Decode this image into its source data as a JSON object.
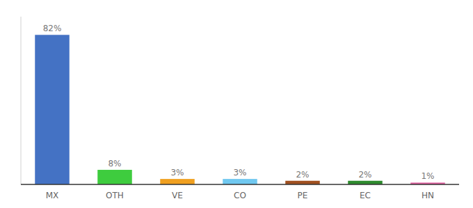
{
  "chart_data": {
    "type": "bar",
    "categories": [
      "MX",
      "OTH",
      "VE",
      "CO",
      "PE",
      "EC",
      "HN"
    ],
    "values": [
      82,
      8,
      3,
      3,
      2,
      2,
      1
    ],
    "value_labels": [
      "82%",
      "8%",
      "3%",
      "3%",
      "2%",
      "2%",
      "1%"
    ],
    "colors": [
      "#4472c4",
      "#3ecc3e",
      "#f0a020",
      "#70c8f0",
      "#a05020",
      "#2e8b2e",
      "#e060a0"
    ],
    "ylim": [
      0,
      92
    ],
    "data_labels": true,
    "tick_labels": "x",
    "grid": false
  }
}
